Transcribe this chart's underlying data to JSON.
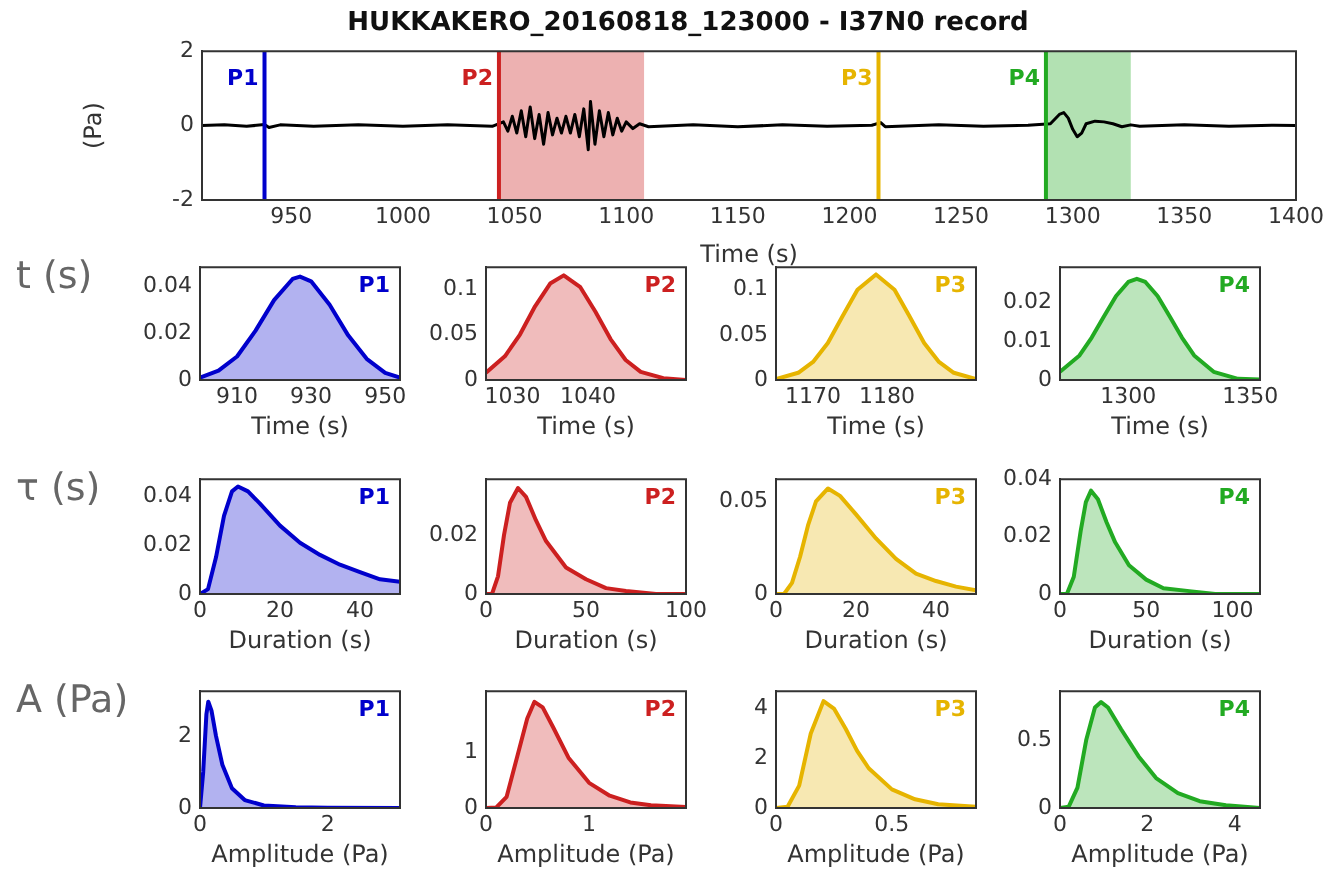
{
  "chart_data": [
    {
      "type": "line",
      "title": "HUKKAKERO_20160818_123000 - I37N0 record",
      "xlabel": "Time (s)",
      "ylabel": "(Pa)",
      "xlim": [
        910,
        1400
      ],
      "xticks": [
        950,
        1000,
        1050,
        1100,
        1150,
        1200,
        1250,
        1300,
        1350,
        1400
      ],
      "ylim": [
        -2,
        2
      ],
      "yticks": [
        -2,
        0,
        2
      ],
      "x": [
        910,
        920,
        930,
        938,
        940,
        945,
        960,
        980,
        1000,
        1020,
        1040,
        1045,
        1047,
        1049,
        1051,
        1053,
        1055,
        1057,
        1059,
        1061,
        1063,
        1065,
        1067,
        1069,
        1071,
        1073,
        1075,
        1077,
        1079,
        1081,
        1083,
        1084,
        1086,
        1088,
        1090,
        1092,
        1094,
        1096,
        1098,
        1100,
        1103,
        1106,
        1110,
        1130,
        1150,
        1170,
        1190,
        1210,
        1214,
        1216,
        1240,
        1260,
        1280,
        1290,
        1294,
        1296,
        1298,
        1300,
        1302,
        1304,
        1306,
        1310,
        1314,
        1318,
        1322,
        1326,
        1330,
        1350,
        1370,
        1390,
        1400
      ],
      "series": [
        {
          "color": "#000000",
          "values": [
            0,
            0.02,
            -0.02,
            0.03,
            -0.05,
            0.02,
            -0.02,
            0.02,
            -0.02,
            0.02,
            -0.02,
            0.1,
            -0.15,
            0.25,
            -0.2,
            0.4,
            -0.3,
            0.5,
            -0.35,
            0.3,
            -0.5,
            0.35,
            -0.25,
            0.2,
            -0.2,
            0.25,
            -0.2,
            0.3,
            -0.3,
            0.45,
            -0.65,
            0.65,
            -0.5,
            0.4,
            -0.3,
            0.35,
            -0.25,
            0.2,
            -0.15,
            0.1,
            -0.08,
            0.05,
            -0.03,
            0.02,
            -0.03,
            0.02,
            -0.02,
            0.01,
            0.08,
            -0.03,
            0.02,
            -0.02,
            0.01,
            0.05,
            0.3,
            0.35,
            0.2,
            -0.1,
            -0.3,
            -0.2,
            0.05,
            0.12,
            0.1,
            0.05,
            -0.03,
            0.02,
            -0.02,
            0.02,
            -0.02,
            0.01,
            0
          ]
        }
      ],
      "ref_lines": [
        {
          "axis": "x",
          "value": 938,
          "label": "P1",
          "color": "#0000cc"
        },
        {
          "axis": "x",
          "value": 1043,
          "label": "P2",
          "color": "#cc2020"
        },
        {
          "axis": "x",
          "value": 1213,
          "label": "P3",
          "color": "#e6b400"
        },
        {
          "axis": "x",
          "value": 1288,
          "label": "P4",
          "color": "#22aa22"
        }
      ],
      "bands": [
        {
          "axis": "x",
          "from": 1043,
          "to": 1108,
          "color": "#cc2020"
        },
        {
          "axis": "x",
          "from": 1288,
          "to": 1326,
          "color": "#22aa22"
        }
      ]
    },
    {
      "type": "area",
      "ylabel": "t (s)",
      "xlabel": "Time (s)",
      "xlim": [
        900,
        954
      ],
      "xticks": [
        910,
        930,
        950
      ],
      "ylim": [
        0,
        0.048
      ],
      "yticks": [
        0,
        0.02,
        0.04
      ],
      "legend": "top right",
      "x": [
        900,
        905,
        910,
        915,
        920,
        925,
        927,
        930,
        935,
        940,
        945,
        950,
        954
      ],
      "series": [
        {
          "name": "P1",
          "color": "#0000cc",
          "values": [
            0.001,
            0.004,
            0.01,
            0.021,
            0.034,
            0.043,
            0.044,
            0.042,
            0.032,
            0.019,
            0.009,
            0.003,
            0.001
          ]
        }
      ]
    },
    {
      "type": "area",
      "xlabel": "Time (s)",
      "xlim": [
        1026.5,
        1053
      ],
      "xticks": [
        1030,
        1040
      ],
      "ylim": [
        0,
        0.124
      ],
      "yticks": [
        0,
        0.05,
        0.1
      ],
      "legend": "top right",
      "x": [
        1026.5,
        1029,
        1031,
        1033,
        1035,
        1036.8,
        1039,
        1041,
        1043,
        1045,
        1047,
        1050,
        1053
      ],
      "series": [
        {
          "name": "P2",
          "color": "#cc2020",
          "values": [
            0.008,
            0.026,
            0.05,
            0.081,
            0.106,
            0.115,
            0.102,
            0.075,
            0.045,
            0.022,
            0.009,
            0.002,
            0
          ]
        }
      ]
    },
    {
      "type": "area",
      "xlabel": "Time (s)",
      "xlim": [
        1165,
        1192
      ],
      "xticks": [
        1170,
        1180
      ],
      "ylim": [
        0,
        0.125
      ],
      "yticks": [
        0,
        0.05,
        0.1
      ],
      "legend": "top right",
      "x": [
        1165,
        1168,
        1170,
        1172,
        1174,
        1176,
        1178.5,
        1181,
        1183,
        1185,
        1187,
        1189,
        1192
      ],
      "series": [
        {
          "name": "P3",
          "color": "#e6b400",
          "values": [
            0.001,
            0.008,
            0.02,
            0.041,
            0.071,
            0.1,
            0.117,
            0.1,
            0.071,
            0.041,
            0.02,
            0.008,
            0.001
          ]
        }
      ]
    },
    {
      "type": "area",
      "xlabel": "Time (s)",
      "xlim": [
        1272,
        1354
      ],
      "xticks": [
        1300,
        1350
      ],
      "ylim": [
        0,
        0.029
      ],
      "yticks": [
        0,
        0.01,
        0.02
      ],
      "legend": "top right",
      "x": [
        1272,
        1280,
        1285,
        1290,
        1295,
        1300,
        1303.5,
        1307,
        1312,
        1317,
        1322,
        1327,
        1335,
        1345,
        1354
      ],
      "series": [
        {
          "name": "P4",
          "color": "#22aa22",
          "values": [
            0.0021,
            0.0063,
            0.0109,
            0.0163,
            0.0216,
            0.0252,
            0.026,
            0.0252,
            0.0216,
            0.0163,
            0.0109,
            0.0063,
            0.0021,
            0.0003,
            0.0001
          ]
        }
      ]
    },
    {
      "type": "area",
      "ylabel": "τ (s)",
      "xlabel": "Duration (s)",
      "xlim": [
        0,
        50
      ],
      "xticks": [
        0,
        20,
        40
      ],
      "ylim": [
        0,
        0.047
      ],
      "yticks": [
        0,
        0.02,
        0.04
      ],
      "legend": "top right",
      "x": [
        0,
        2,
        4,
        6,
        8,
        9.5,
        12,
        15,
        20,
        25,
        30,
        35,
        40,
        45,
        50
      ],
      "series": [
        {
          "name": "P1",
          "color": "#0000cc",
          "values": [
            0,
            0.002,
            0.015,
            0.032,
            0.042,
            0.044,
            0.042,
            0.037,
            0.028,
            0.021,
            0.016,
            0.012,
            0.009,
            0.006,
            0.005
          ]
        }
      ]
    },
    {
      "type": "area",
      "xlabel": "Duration (s)",
      "xlim": [
        0,
        100
      ],
      "xticks": [
        0,
        50,
        100
      ],
      "ylim": [
        0,
        0.039
      ],
      "yticks": [
        0,
        0.02
      ],
      "legend": "top right",
      "x": [
        0,
        3,
        6,
        9,
        12,
        16,
        20,
        25,
        30,
        40,
        50,
        60,
        70,
        85,
        100
      ],
      "series": [
        {
          "name": "P2",
          "color": "#cc2020",
          "values": [
            0,
            0,
            0.006,
            0.02,
            0.031,
            0.036,
            0.033,
            0.025,
            0.018,
            0.009,
            0.005,
            0.002,
            0.001,
            0,
            0
          ]
        }
      ]
    },
    {
      "type": "area",
      "xlabel": "Duration (s)",
      "xlim": [
        0,
        50
      ],
      "xticks": [
        0,
        20,
        40
      ],
      "ylim": [
        0,
        0.062
      ],
      "yticks": [
        0,
        0.05
      ],
      "legend": "top right",
      "x": [
        0,
        2,
        4,
        6,
        8,
        10,
        13,
        16,
        20,
        25,
        30,
        35,
        40,
        45,
        50
      ],
      "series": [
        {
          "name": "P3",
          "color": "#e6b400",
          "values": [
            0,
            0,
            0.006,
            0.02,
            0.037,
            0.05,
            0.057,
            0.053,
            0.043,
            0.03,
            0.019,
            0.011,
            0.007,
            0.004,
            0.002
          ]
        }
      ]
    },
    {
      "type": "area",
      "xlabel": "Duration (s)",
      "xlim": [
        0,
        116
      ],
      "xticks": [
        0,
        50,
        100
      ],
      "ylim": [
        0,
        0.04
      ],
      "yticks": [
        0,
        0.02,
        0.04
      ],
      "legend": "top right",
      "x": [
        0,
        4,
        8,
        12,
        15,
        18,
        22,
        27,
        32,
        40,
        50,
        60,
        75,
        90,
        116
      ],
      "series": [
        {
          "name": "P4",
          "color": "#22aa22",
          "values": [
            0,
            0,
            0.006,
            0.022,
            0.032,
            0.036,
            0.033,
            0.025,
            0.018,
            0.01,
            0.005,
            0.002,
            0.001,
            0,
            0
          ]
        }
      ]
    },
    {
      "type": "area",
      "ylabel": "A (Pa)",
      "xlabel": "Amplitude (Pa)",
      "xlim": [
        0,
        3.13
      ],
      "xticks": [
        0,
        2
      ],
      "ylim": [
        0,
        3.24
      ],
      "yticks": [
        0,
        2
      ],
      "legend": "top right",
      "x": [
        0,
        0.05,
        0.1,
        0.13,
        0.18,
        0.25,
        0.35,
        0.5,
        0.7,
        1,
        1.5,
        2,
        3.13
      ],
      "series": [
        {
          "name": "P1",
          "color": "#0000cc",
          "values": [
            0,
            1,
            2.6,
            2.95,
            2.7,
            2,
            1.2,
            0.55,
            0.22,
            0.07,
            0.02,
            0.01,
            0
          ]
        }
      ]
    },
    {
      "type": "area",
      "xlabel": "Amplitude (Pa)",
      "xlim": [
        0,
        1.94
      ],
      "xticks": [
        0,
        1
      ],
      "ylim": [
        0,
        2.09
      ],
      "yticks": [
        0,
        1
      ],
      "legend": "top right",
      "x": [
        0,
        0.1,
        0.2,
        0.3,
        0.4,
        0.47,
        0.55,
        0.65,
        0.8,
        1,
        1.2,
        1.4,
        1.6,
        1.94
      ],
      "series": [
        {
          "name": "P2",
          "color": "#cc2020",
          "values": [
            0,
            0.01,
            0.2,
            0.9,
            1.6,
            1.9,
            1.8,
            1.45,
            0.9,
            0.45,
            0.22,
            0.1,
            0.05,
            0.02
          ]
        }
      ]
    },
    {
      "type": "area",
      "xlabel": "Amplitude (Pa)",
      "xlim": [
        0,
        0.863
      ],
      "xticks": [
        0,
        0.5
      ],
      "ylim": [
        0,
        4.7
      ],
      "yticks": [
        0,
        2,
        4
      ],
      "legend": "top right",
      "x": [
        0,
        0.05,
        0.1,
        0.15,
        0.205,
        0.25,
        0.3,
        0.35,
        0.4,
        0.5,
        0.6,
        0.7,
        0.863
      ],
      "series": [
        {
          "name": "P3",
          "color": "#e6b400",
          "values": [
            0,
            0.05,
            0.9,
            3,
            4.3,
            4,
            3.2,
            2.3,
            1.6,
            0.75,
            0.35,
            0.15,
            0.05
          ]
        }
      ]
    },
    {
      "type": "area",
      "xlabel": "Amplitude (Pa)",
      "xlim": [
        0,
        4.58
      ],
      "xticks": [
        0,
        2,
        4
      ],
      "ylim": [
        0,
        0.86
      ],
      "yticks": [
        0,
        0.5
      ],
      "legend": "top right",
      "x": [
        0,
        0.2,
        0.4,
        0.6,
        0.8,
        0.94,
        1.1,
        1.4,
        1.8,
        2.2,
        2.7,
        3.2,
        3.8,
        4.58
      ],
      "series": [
        {
          "name": "P4",
          "color": "#22aa22",
          "values": [
            0,
            0.01,
            0.15,
            0.5,
            0.74,
            0.78,
            0.74,
            0.58,
            0.38,
            0.22,
            0.11,
            0.05,
            0.02,
            0
          ]
        }
      ]
    }
  ]
}
